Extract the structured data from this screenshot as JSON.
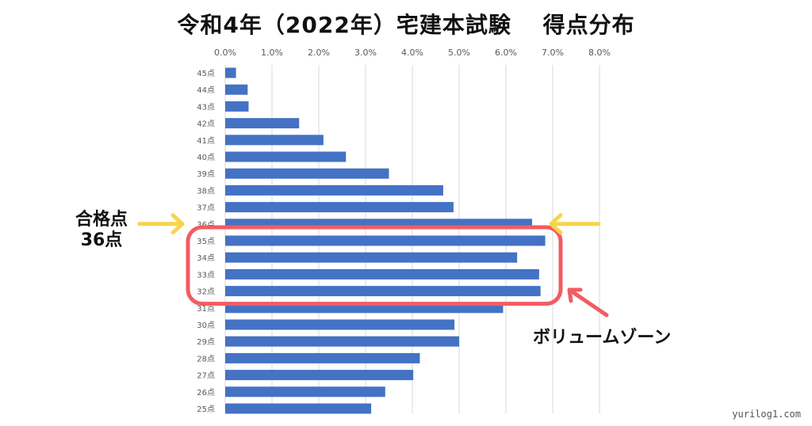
{
  "title": "令和4年（2022年）宅建本試験　 得点分布",
  "annotations": {
    "pass_line": "合格点",
    "pass_score": "36点",
    "volume_zone": "ボリュームゾーン"
  },
  "watermark": "yurilog1.com",
  "colors": {
    "bar": "#4472C4",
    "grid": "#d9d9d9",
    "tick_text": "#595959",
    "pass_arrow": "#F7D54A",
    "volume_highlight": "#F25C63"
  },
  "chart_data": {
    "type": "bar",
    "orientation": "horizontal",
    "title": "令和4年（2022年）宅建本試験　 得点分布",
    "categories": [
      "45点",
      "44点",
      "43点",
      "42点",
      "41点",
      "40点",
      "39点",
      "38点",
      "37点",
      "36点",
      "35点",
      "34点",
      "33点",
      "32点",
      "31点",
      "30点",
      "29点",
      "28点",
      "27点",
      "26点",
      "25点"
    ],
    "values": [
      0.23,
      0.48,
      0.5,
      1.58,
      2.1,
      2.58,
      3.5,
      4.66,
      4.88,
      6.56,
      6.84,
      6.24,
      6.71,
      6.74,
      5.94,
      4.9,
      5.0,
      4.16,
      4.02,
      3.42,
      3.12
    ],
    "xlim": [
      0,
      8
    ],
    "xticks": [
      "0.0%",
      "1.0%",
      "2.0%",
      "3.0%",
      "4.0%",
      "5.0%",
      "6.0%",
      "7.0%",
      "8.0%"
    ],
    "grid": true,
    "legend": "none",
    "highlighted_pass_category": "36点",
    "highlighted_volume_categories": [
      "35点",
      "34点",
      "33点",
      "32点"
    ]
  }
}
